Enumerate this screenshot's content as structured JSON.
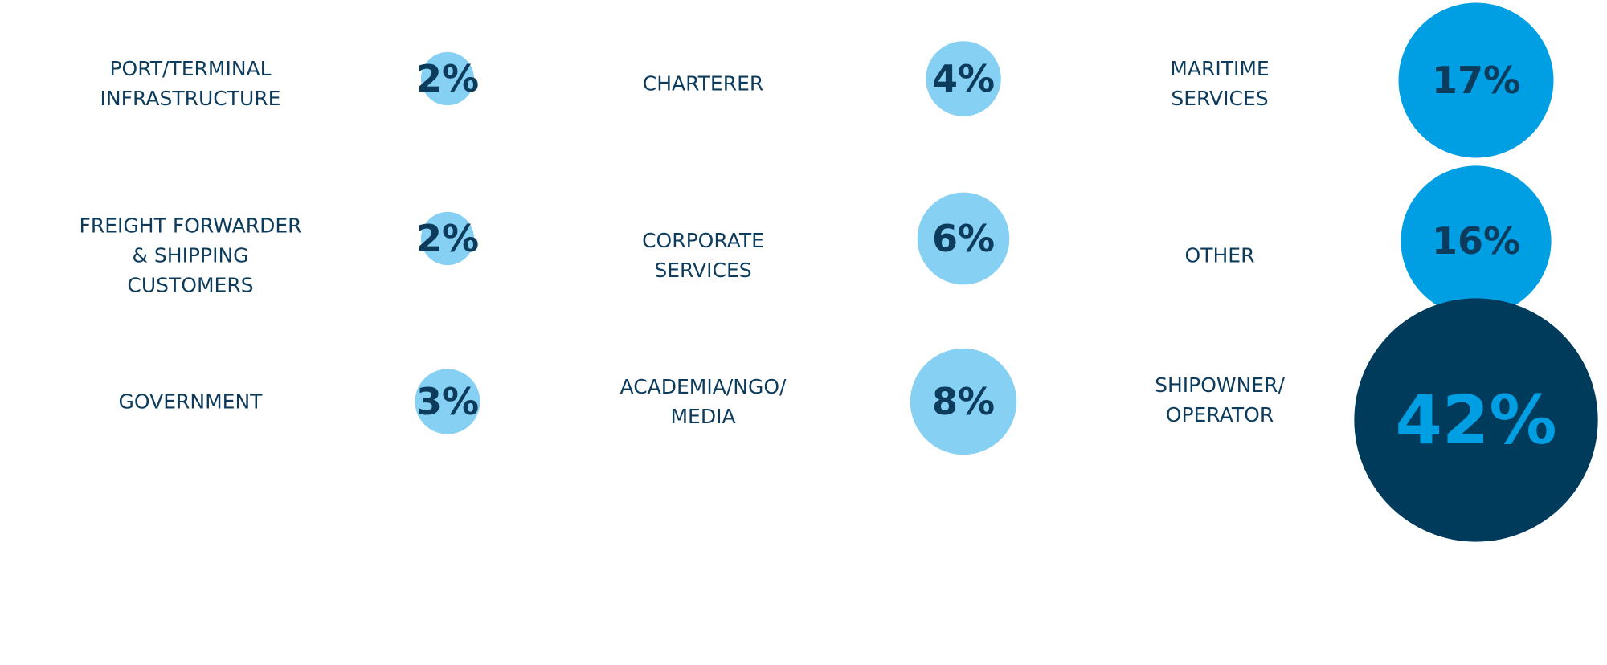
{
  "chart_data": {
    "type": "bubble",
    "categories": [
      "PORT/TERMINAL\nINFRASTRUCTURE",
      "FREIGHT FORWARDER\n& SHIPPING\nCUSTOMERS",
      "GOVERNMENT",
      "CHARTERER",
      "CORPORATE\nSERVICES",
      "ACADEMIA/NGO/\nMEDIA",
      "MARITIME\nSERVICES",
      "OTHER",
      "SHIPOWNER/\nOPERATOR"
    ],
    "values": [
      2,
      2,
      3,
      4,
      6,
      8,
      17,
      16,
      42
    ],
    "value_labels": [
      "2%",
      "2%",
      "3%",
      "4%",
      "6%",
      "8%",
      "17%",
      "16%",
      "42%"
    ],
    "colors": [
      "#86d0f4",
      "#86d0f4",
      "#86d0f4",
      "#86d0f4",
      "#86d0f4",
      "#86d0f4",
      "#009fe3",
      "#009fe3",
      "#003b5c"
    ],
    "label_colors": [
      "#0d3b5c",
      "#0d3b5c",
      "#0d3b5c",
      "#0d3b5c",
      "#0d3b5c",
      "#0d3b5c",
      "#0d3b5c",
      "#0d3b5c",
      "#009fe3"
    ]
  }
}
